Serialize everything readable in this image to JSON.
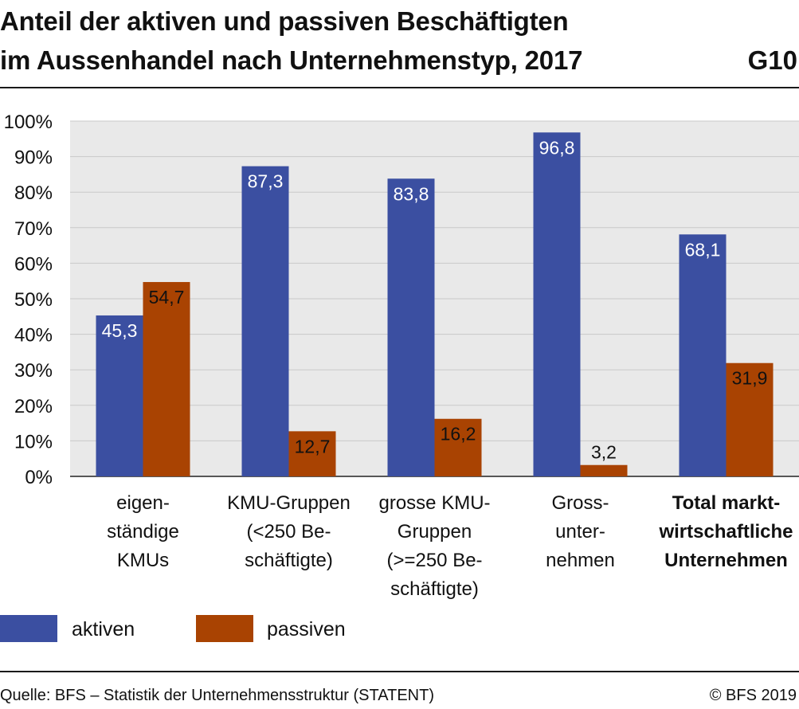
{
  "header": {
    "title_line1": "Anteil der aktiven und passiven Beschäftigten",
    "title_line2": "im Aussenhandel nach Unternehmenstyp, 2017",
    "chart_id": "G10"
  },
  "colors": {
    "aktiven": "#3B4FA1",
    "passiven": "#A94302",
    "grid": "#c9c9c9",
    "plot_bg": "#e9e9e9"
  },
  "chart_data": {
    "type": "bar",
    "title": "Anteil der aktiven und passiven Beschäftigten im Aussenhandel nach Unternehmenstyp, 2017",
    "categories": [
      "eigenständige KMUs",
      "KMU-Gruppen (<250 Beschäftigte)",
      "grosse KMU-Gruppen (>=250 Beschäftigte)",
      "Grossunternehmen",
      "Total marktwirtschaftliche Unternehmen"
    ],
    "category_label_lines": [
      [
        "eigen-",
        "ständige",
        "KMUs"
      ],
      [
        "KMU-Gruppen",
        "(<250 Be-",
        "schäftigte)"
      ],
      [
        "grosse KMU-",
        "Gruppen",
        "(>=250 Be-",
        "schäftigte)"
      ],
      [
        "Gross-",
        "unter-",
        "nehmen"
      ],
      [
        "Total markt-",
        "wirtschaftliche",
        "Unternehmen"
      ]
    ],
    "series": [
      {
        "name": "aktiven",
        "values": [
          45.3,
          87.3,
          83.8,
          96.8,
          68.1
        ],
        "labels": [
          "45,3",
          "87,3",
          "83,8",
          "96,8",
          "68,1"
        ]
      },
      {
        "name": "passiven",
        "values": [
          54.7,
          12.7,
          16.2,
          3.2,
          31.9
        ],
        "labels": [
          "54,7",
          "12,7",
          "16,2",
          "3,2",
          "31,9"
        ]
      }
    ],
    "ylim": [
      0,
      100
    ],
    "yticks": [
      "0%",
      "10%",
      "20%",
      "30%",
      "40%",
      "50%",
      "60%",
      "70%",
      "80%",
      "90%",
      "100%"
    ],
    "grid": true,
    "legend_position": "bottom-left"
  },
  "footer": {
    "source": "Quelle: BFS – Statistik der Unternehmensstruktur (STATENT)",
    "copyright": "© BFS 2019"
  }
}
